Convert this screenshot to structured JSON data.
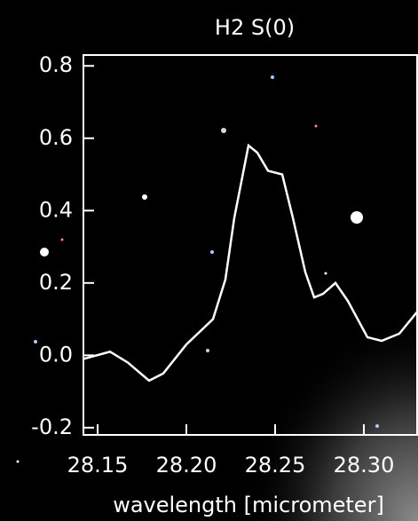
{
  "chart_data": {
    "type": "line",
    "title": "H2 S(0)",
    "x_label": "wavelength [micrometer]",
    "series": [
      {
        "color": "#ffffff",
        "x": [
          28.142,
          28.157,
          28.167,
          28.179,
          28.187,
          28.2,
          28.215,
          28.222,
          28.227,
          28.235,
          28.24,
          28.246,
          28.254,
          28.26,
          28.267,
          28.272,
          28.277,
          28.284,
          28.291,
          28.302,
          28.31,
          28.32,
          28.33
        ],
        "values": [
          -0.01,
          0.01,
          -0.02,
          -0.07,
          -0.05,
          0.03,
          0.1,
          0.21,
          0.38,
          0.58,
          0.56,
          0.51,
          0.5,
          0.38,
          0.23,
          0.16,
          0.17,
          0.2,
          0.15,
          0.05,
          0.04,
          0.06,
          0.12
        ]
      }
    ],
    "xlim": [
      28.142,
      28.33
    ],
    "xticks": [
      28.15,
      {
        "value": 28.2,
        "label": "28.20"
      },
      28.25,
      {
        "value": 28.3,
        "label": "28.30"
      }
    ],
    "ylim": [
      -0.22,
      0.83
    ],
    "yticks": [
      {
        "value": -0.2,
        "label": "-0.2"
      },
      {
        "value": 0,
        "label": "0.0"
      },
      0.2,
      0.4,
      0.6,
      0.8
    ]
  }
}
